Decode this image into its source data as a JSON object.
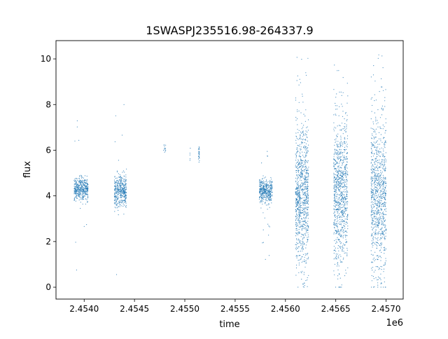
{
  "chart_data": {
    "type": "scatter",
    "title": "1SWASPJ235516.98-264337.9",
    "xlabel": "time",
    "ylabel": "flux",
    "x_offset_label": "1e6",
    "xlim": [
      2453720,
      2457170
    ],
    "ylim": [
      -0.52,
      10.8
    ],
    "xticks": [
      2454000,
      2454500,
      2455000,
      2455500,
      2456000,
      2456500,
      2457000
    ],
    "xtick_labels": [
      "2.4540",
      "2.4545",
      "2.4550",
      "2.4555",
      "2.4560",
      "2.4565",
      "2.4570"
    ],
    "yticks": [
      0,
      2,
      4,
      6,
      8,
      10
    ],
    "ytick_labels": [
      "0",
      "2",
      "4",
      "6",
      "8",
      "10"
    ],
    "grid": false,
    "color": "#1f77b4",
    "clusters": [
      {
        "t_start": 2453900,
        "t_end": 2454040,
        "flux_center": 4.3,
        "flux_spread": 0.25,
        "flux_min": 0.5,
        "flux_max": 7.5,
        "n": 400
      },
      {
        "t_start": 2454300,
        "t_end": 2454420,
        "flux_center": 4.2,
        "flux_spread": 0.35,
        "flux_min": 0.05,
        "flux_max": 8.2,
        "n": 400
      },
      {
        "t_start": 2454790,
        "t_end": 2454810,
        "flux_center": 6.1,
        "flux_spread": 0.15,
        "flux_min": 5.9,
        "flux_max": 6.5,
        "n": 12
      },
      {
        "t_start": 2455050,
        "t_end": 2455055,
        "flux_center": 5.8,
        "flux_spread": 0.2,
        "flux_min": 5.3,
        "flux_max": 6.1,
        "n": 5
      },
      {
        "t_start": 2455135,
        "t_end": 2455145,
        "flux_center": 5.8,
        "flux_spread": 0.2,
        "flux_min": 5.3,
        "flux_max": 6.3,
        "n": 25
      },
      {
        "t_start": 2455740,
        "t_end": 2455870,
        "flux_center": 4.2,
        "flux_spread": 0.25,
        "flux_min": 1.2,
        "flux_max": 6.2,
        "n": 400
      },
      {
        "t_start": 2456100,
        "t_end": 2456230,
        "flux_center": 4.0,
        "flux_spread": 1.5,
        "flux_min": 0.0,
        "flux_max": 10.3,
        "n": 900
      },
      {
        "t_start": 2456480,
        "t_end": 2456620,
        "flux_center": 4.2,
        "flux_spread": 1.6,
        "flux_min": 0.0,
        "flux_max": 10.3,
        "n": 900
      },
      {
        "t_start": 2456850,
        "t_end": 2457000,
        "flux_center": 4.0,
        "flux_spread": 1.7,
        "flux_min": 0.0,
        "flux_max": 10.3,
        "n": 900
      }
    ]
  }
}
